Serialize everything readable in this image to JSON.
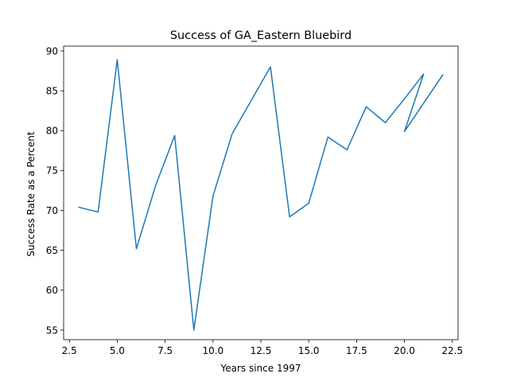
{
  "chart_data": {
    "type": "line",
    "title": "Success of GA_Eastern Bluebird",
    "xlabel": "Years since 1997",
    "ylabel": "Success Rate as a Percent",
    "xlim": [
      2.2,
      22.8
    ],
    "ylim": [
      53.8,
      90.6
    ],
    "xticks": [
      2.5,
      5.0,
      7.5,
      10.0,
      12.5,
      15.0,
      17.5,
      20.0,
      22.5
    ],
    "xtick_labels": [
      "2.5",
      "5.0",
      "7.5",
      "10.0",
      "12.5",
      "15.0",
      "17.5",
      "20.0",
      "22.5"
    ],
    "yticks": [
      55,
      60,
      65,
      70,
      75,
      80,
      85,
      90
    ],
    "ytick_labels": [
      "55",
      "60",
      "65",
      "70",
      "75",
      "80",
      "85",
      "90"
    ],
    "grid": false,
    "series": [
      {
        "color": "#1f77b4",
        "x": [
          3,
          4,
          5,
          6,
          7,
          8,
          9,
          10,
          11,
          12,
          13,
          14,
          15,
          16,
          17,
          18,
          19,
          20,
          21,
          20,
          22
        ],
        "y": [
          70.4,
          69.8,
          88.9,
          65.2,
          73.1,
          79.4,
          55.0,
          71.8,
          79.6,
          83.8,
          88.0,
          69.2,
          70.9,
          79.2,
          77.6,
          83.0,
          81.0,
          84.0,
          87.1,
          79.9,
          87.0
        ]
      }
    ]
  }
}
